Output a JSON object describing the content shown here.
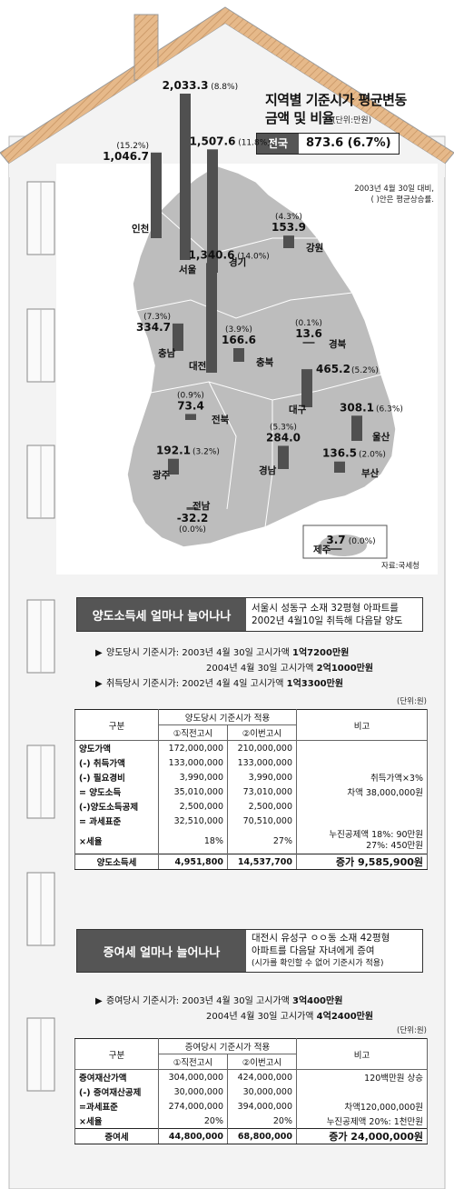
{
  "colors": {
    "bar": "#505050",
    "box": "#555555",
    "roof": "#e6b98a",
    "house": "#f3f3f3",
    "map": "#bdbdbd"
  },
  "chart_data": {
    "type": "bar",
    "title": "지역별 기준시가 평균변동 금액 및 비율",
    "unit": "(단위:만원)",
    "national": {
      "label": "전국",
      "value": "873.6",
      "pct": "(6.7%)"
    },
    "note": [
      "2003년 4월 30일 대비,",
      "( )안은 평균상승률."
    ],
    "source": "자료:국세청",
    "regions": [
      {
        "key": "seoul",
        "name": "서울",
        "value": 2033.3,
        "label": "2,033.3",
        "pct": "(8.8%)"
      },
      {
        "key": "gyeonggi",
        "name": "경기",
        "value": 1507.6,
        "label": "1,507.6",
        "pct": "(11.8%)"
      },
      {
        "key": "incheon",
        "name": "인천",
        "value": 1046.7,
        "label": "1,046.7",
        "pct": "(15.2%)"
      },
      {
        "key": "daejeon",
        "name": "대전",
        "value": 1340.6,
        "label": "1,340.6",
        "pct": "(14.0%)"
      },
      {
        "key": "gangwon",
        "name": "강원",
        "value": 153.9,
        "label": "153.9",
        "pct": "(4.3%)"
      },
      {
        "key": "chungnam",
        "name": "충남",
        "value": 334.7,
        "label": "334.7",
        "pct": "(7.3%)"
      },
      {
        "key": "chungbuk",
        "name": "충북",
        "value": 166.6,
        "label": "166.6",
        "pct": "(3.9%)"
      },
      {
        "key": "gyeongbuk",
        "name": "경북",
        "value": 13.6,
        "label": "13.6",
        "pct": "(0.1%)"
      },
      {
        "key": "jeonbuk",
        "name": "전북",
        "value": 73.4,
        "label": "73.4",
        "pct": "(0.9%)"
      },
      {
        "key": "daegu",
        "name": "대구",
        "value": 465.2,
        "label": "465.2",
        "pct": "(5.2%)"
      },
      {
        "key": "ulsan",
        "name": "울산",
        "value": 308.1,
        "label": "308.1",
        "pct": "(6.3%)"
      },
      {
        "key": "gwangju",
        "name": "광주",
        "value": 192.1,
        "label": "192.1",
        "pct": "(3.2%)"
      },
      {
        "key": "gyeongnam",
        "name": "경남",
        "value": 284.0,
        "label": "284.0",
        "pct": "(5.3%)"
      },
      {
        "key": "busan",
        "name": "부산",
        "value": 136.5,
        "label": "136.5",
        "pct": "(2.0%)"
      },
      {
        "key": "jeonnam",
        "name": "전남",
        "value": -32.2,
        "label": "-32.2",
        "pct": "(0.0%)"
      },
      {
        "key": "jeju",
        "name": "제주",
        "value": 3.7,
        "label": "3.7",
        "pct": "(0.0%)"
      }
    ]
  },
  "cgt": {
    "title": "양도소득세 얼마나 늘어나나",
    "desc": [
      "서울시 성동구 소재 32평형 아파트를",
      "2002년 4월10일 취득해 다음달 양도"
    ],
    "info": [
      {
        "bullet": "▶",
        "label": "양도당시 기준시가:",
        "text": "2003년 4월 30일 고시가액",
        "bold": "1억7200만원"
      },
      {
        "bullet": "",
        "label": "",
        "text": "2004년 4월 30일 고시가액",
        "bold": "2억1000만원"
      },
      {
        "bullet": "▶",
        "label": "취득당시 기준시가:",
        "text": "2002년 4월  4일 고시가액",
        "bold": "1억3300만원"
      }
    ],
    "unit": "(단위:원)",
    "header": {
      "item": "구분",
      "group": "양도당시 기준시가 적용",
      "col1": "①직전고시",
      "col2": "②이번고시",
      "note": "비고"
    },
    "rows": [
      {
        "label": "양도가액",
        "a": "172,000,000",
        "b": "210,000,000",
        "note": ""
      },
      {
        "label": "(-) 취득가액",
        "a": "133,000,000",
        "b": "133,000,000",
        "note": ""
      },
      {
        "label": "(-) 필요경비",
        "a": "3,990,000",
        "b": "3,990,000",
        "note": "취득가액×3%"
      },
      {
        "label": "= 양도소득",
        "a": "35,010,000",
        "b": "73,010,000",
        "note": "차액 38,000,000원"
      },
      {
        "label": "(-)양도소득공제",
        "a": "2,500,000",
        "b": "2,500,000",
        "note": ""
      },
      {
        "label": "= 과세표준",
        "a": "32,510,000",
        "b": "70,510,000",
        "note": ""
      }
    ],
    "rate": {
      "label": "×세율",
      "a": "18%",
      "b": "27%",
      "note1": "누진공제액  18%: 90만원",
      "note2": "27%: 450만원"
    },
    "total": {
      "label": "양도소득세",
      "a": "4,951,800",
      "b": "14,537,700",
      "note": "증가 9,585,900원"
    }
  },
  "gift": {
    "title": "증여세 얼마나 늘어나나",
    "desc": [
      "대전시 유성구 ㅇㅇ동 소재 42평형",
      "아파트를 다음달 자녀에게 증여"
    ],
    "desc_sub": "(시가를 확인할 수 없어 기준시가 적용)",
    "info": [
      {
        "bullet": "▶",
        "label": "증여당시 기준시가:",
        "text": "2003년 4월 30일 고시가액",
        "bold": "3억400만원"
      },
      {
        "bullet": "",
        "label": "",
        "text": "2004년 4월 30일 고시가액",
        "bold": "4억2400만원"
      }
    ],
    "unit": "(단위:원)",
    "header": {
      "item": "구분",
      "group": "증여당시 기준시가 적용",
      "col1": "①직전고시",
      "col2": "②이번고시",
      "note": "비고"
    },
    "rows": [
      {
        "label": "증여재산가액",
        "a": "304,000,000",
        "b": "424,000,000",
        "note": "120백만원 상승"
      },
      {
        "label": "(-) 증여재산공제",
        "a": "30,000,000",
        "b": "30,000,000",
        "note": ""
      },
      {
        "label": "=과세표준",
        "a": "274,000,000",
        "b": "394,000,000",
        "note": "차액120,000,000원"
      },
      {
        "label": "×세율",
        "a": "20%",
        "b": "20%",
        "note": "누진공제액 20%: 1천만원"
      }
    ],
    "total": {
      "label": "증여세",
      "a": "44,800,000",
      "b": "68,800,000",
      "note": "증가 24,000,000원"
    }
  }
}
